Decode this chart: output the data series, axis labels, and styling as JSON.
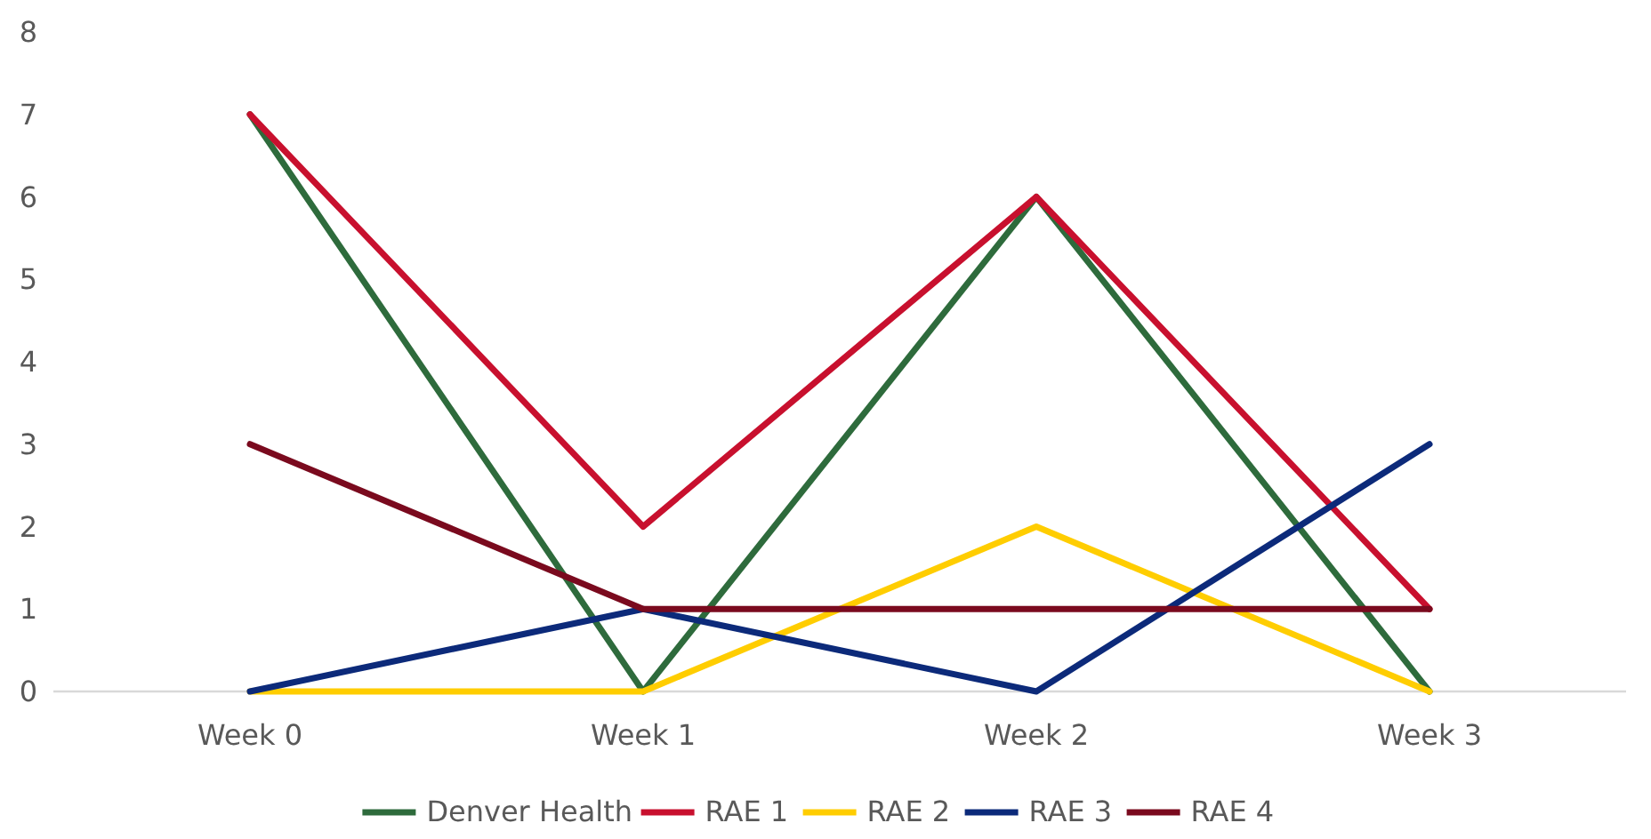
{
  "chart_data": {
    "type": "line",
    "categories": [
      "Week 0",
      "Week 1",
      "Week 2",
      "Week 3"
    ],
    "series": [
      {
        "name": "Denver Health",
        "color": "#2e6b3c",
        "values": [
          7,
          0,
          6,
          0
        ]
      },
      {
        "name": "RAE 1",
        "color": "#c8102e",
        "values": [
          7,
          2,
          6,
          1
        ]
      },
      {
        "name": "RAE 2",
        "color": "#ffcd00",
        "values": [
          0,
          0,
          2,
          0
        ]
      },
      {
        "name": "RAE 3",
        "color": "#0c2a7a",
        "values": [
          0,
          1,
          0,
          3
        ]
      },
      {
        "name": "RAE 4",
        "color": "#7a0a1e",
        "values": [
          3,
          1,
          1,
          1
        ]
      }
    ],
    "ylim": [
      0,
      8
    ],
    "yticks": [
      0,
      1,
      2,
      3,
      4,
      5,
      6,
      7,
      8
    ],
    "grid": false,
    "legend": "bottom",
    "marker": "none",
    "line_style": "solid"
  }
}
